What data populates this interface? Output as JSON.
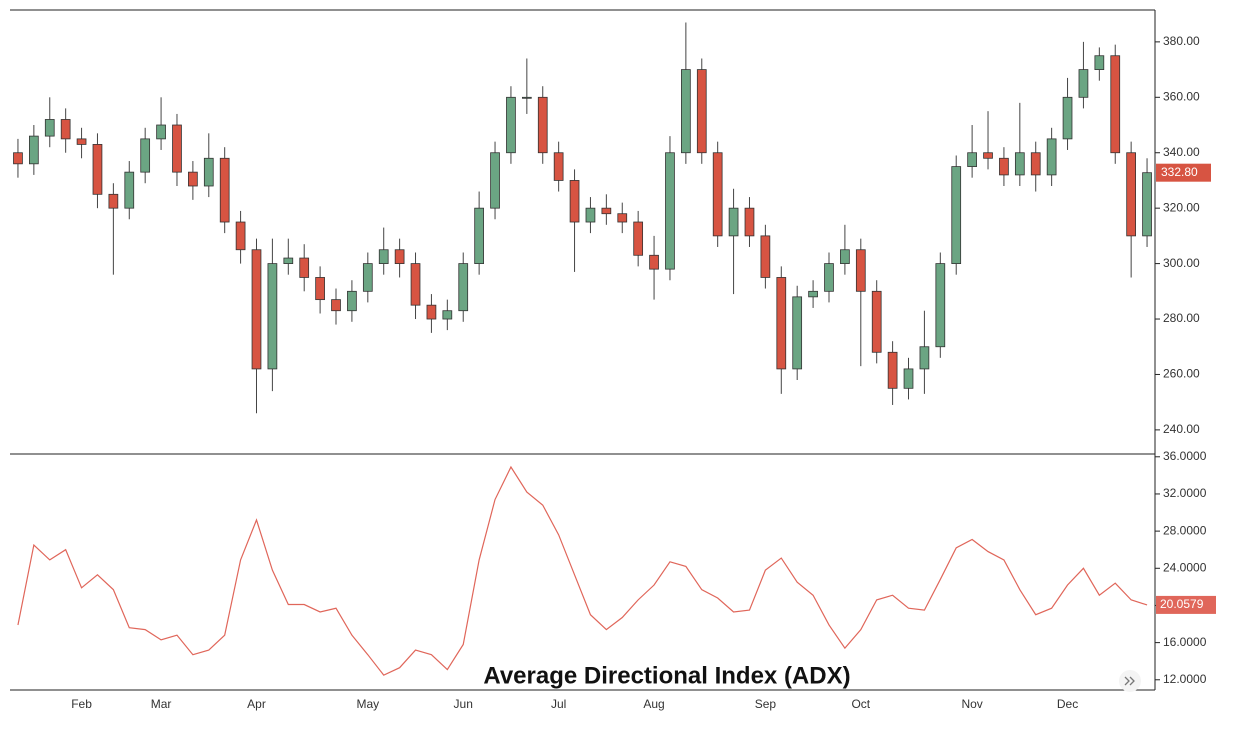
{
  "chart_data": [
    {
      "type": "candlestick",
      "open": [
        340,
        336,
        346,
        352,
        345,
        343,
        325,
        320,
        333,
        345,
        350,
        333,
        328,
        338,
        315,
        305,
        262,
        300,
        302,
        295,
        287,
        283,
        290,
        300,
        305,
        300,
        285,
        280,
        283,
        300,
        320,
        340,
        360,
        360,
        340,
        330,
        315,
        320,
        318,
        315,
        303,
        298,
        340,
        370,
        340,
        310,
        320,
        310,
        295,
        262,
        288,
        290,
        300,
        305,
        290,
        268,
        255,
        262,
        270,
        300,
        335,
        340,
        338,
        332,
        340,
        332,
        345,
        360,
        370,
        375,
        340,
        310
      ],
      "high": [
        345,
        350,
        360,
        356,
        349,
        347,
        329,
        337,
        349,
        360,
        354,
        337,
        347,
        342,
        319,
        309,
        309,
        309,
        307,
        299,
        291,
        294,
        304,
        313,
        309,
        304,
        289,
        287,
        304,
        326,
        344,
        364,
        374,
        364,
        344,
        334,
        324,
        325,
        322,
        319,
        310,
        346,
        387,
        374,
        344,
        327,
        324,
        314,
        299,
        292,
        294,
        304,
        314,
        309,
        294,
        272,
        266,
        283,
        304,
        339,
        350,
        355,
        342,
        358,
        344,
        349,
        367,
        380,
        378,
        379,
        344,
        338
      ],
      "low": [
        331,
        332,
        342,
        340,
        338,
        320,
        296,
        316,
        329,
        341,
        328,
        323,
        324,
        311,
        300,
        246,
        254,
        296,
        290,
        282,
        278,
        279,
        286,
        296,
        295,
        280,
        275,
        276,
        279,
        296,
        316,
        336,
        354,
        336,
        326,
        297,
        311,
        314,
        311,
        299,
        287,
        294,
        336,
        336,
        306,
        289,
        306,
        291,
        253,
        258,
        284,
        286,
        296,
        263,
        264,
        249,
        251,
        253,
        266,
        296,
        331,
        334,
        328,
        328,
        326,
        328,
        341,
        356,
        366,
        336,
        295,
        306
      ],
      "close": [
        336,
        346,
        352,
        345,
        343,
        325,
        320,
        333,
        345,
        350,
        333,
        328,
        338,
        315,
        305,
        262,
        300,
        302,
        295,
        287,
        283,
        290,
        300,
        305,
        300,
        285,
        280,
        283,
        300,
        320,
        340,
        360,
        360,
        340,
        330,
        315,
        320,
        318,
        315,
        303,
        298,
        340,
        370,
        340,
        310,
        320,
        310,
        295,
        262,
        288,
        290,
        300,
        305,
        290,
        268,
        255,
        262,
        270,
        300,
        335,
        340,
        338,
        332,
        340,
        332,
        345,
        360,
        370,
        375,
        340,
        310,
        332.8
      ],
      "up_color": "#6ba583",
      "down_color": "#d75442",
      "price_marker": {
        "value": 332.8,
        "label": "332.80"
      },
      "ylim": [
        231.3,
        391.5
      ],
      "yticks": [
        {
          "value": 240,
          "label": "240.00"
        },
        {
          "value": 260,
          "label": "260.00"
        },
        {
          "value": 280,
          "label": "280.00"
        },
        {
          "value": 300,
          "label": "300.00"
        },
        {
          "value": 320,
          "label": "320.00"
        },
        {
          "value": 340,
          "label": "340.00"
        },
        {
          "value": 360,
          "label": "360.00"
        },
        {
          "value": 380,
          "label": "380.00"
        }
      ]
    },
    {
      "type": "line",
      "title": "Average Directional Index (ADX)",
      "categories": [
        null,
        null,
        null,
        null,
        "Feb",
        null,
        null,
        null,
        null,
        "Mar",
        null,
        null,
        null,
        null,
        null,
        "Apr",
        null,
        null,
        null,
        null,
        null,
        null,
        "May",
        null,
        null,
        null,
        null,
        null,
        "Jun",
        null,
        null,
        null,
        null,
        null,
        "Jul",
        null,
        null,
        null,
        null,
        null,
        "Aug",
        null,
        null,
        null,
        null,
        null,
        null,
        "Sep",
        null,
        null,
        null,
        null,
        null,
        "Oct",
        null,
        null,
        null,
        null,
        null,
        null,
        "Nov",
        null,
        null,
        null,
        null,
        null,
        "Dec",
        null,
        null,
        null,
        null,
        null
      ],
      "values": [
        17.9,
        26.5,
        24.9,
        26,
        21.9,
        23.3,
        21.7,
        17.6,
        17.4,
        16.3,
        16.8,
        14.7,
        15.2,
        16.8,
        24.9,
        29.2,
        23.8,
        20.1,
        20.1,
        19.3,
        19.7,
        16.8,
        14.7,
        12.5,
        13.3,
        15.2,
        14.7,
        13.1,
        15.8,
        24.9,
        31.4,
        34.9,
        32.2,
        30.8,
        27.6,
        23.3,
        19.0,
        17.4,
        18.7,
        20.6,
        22.2,
        24.7,
        24.2,
        21.7,
        20.8,
        19.3,
        19.5,
        23.8,
        25.1,
        22.5,
        21.1,
        17.9,
        15.4,
        17.4,
        20.6,
        21.1,
        19.7,
        19.5,
        22.8,
        26.2,
        27.1,
        25.8,
        24.9,
        21.7,
        19.0,
        19.7,
        22.2,
        24.0,
        21.1,
        22.4,
        20.6,
        20.0579
      ],
      "color": "#e0665a",
      "ylim": [
        10.9,
        36.3
      ],
      "yticks": [
        {
          "value": 12,
          "label": "12.0000"
        },
        {
          "value": 16,
          "label": "16.0000"
        },
        {
          "value": 20,
          "label": "20.0000"
        },
        {
          "value": 24,
          "label": "24.0000"
        },
        {
          "value": 28,
          "label": "28.0000"
        },
        {
          "value": 32,
          "label": "32.0000"
        },
        {
          "value": 36,
          "label": "36.0000"
        }
      ]
    }
  ]
}
